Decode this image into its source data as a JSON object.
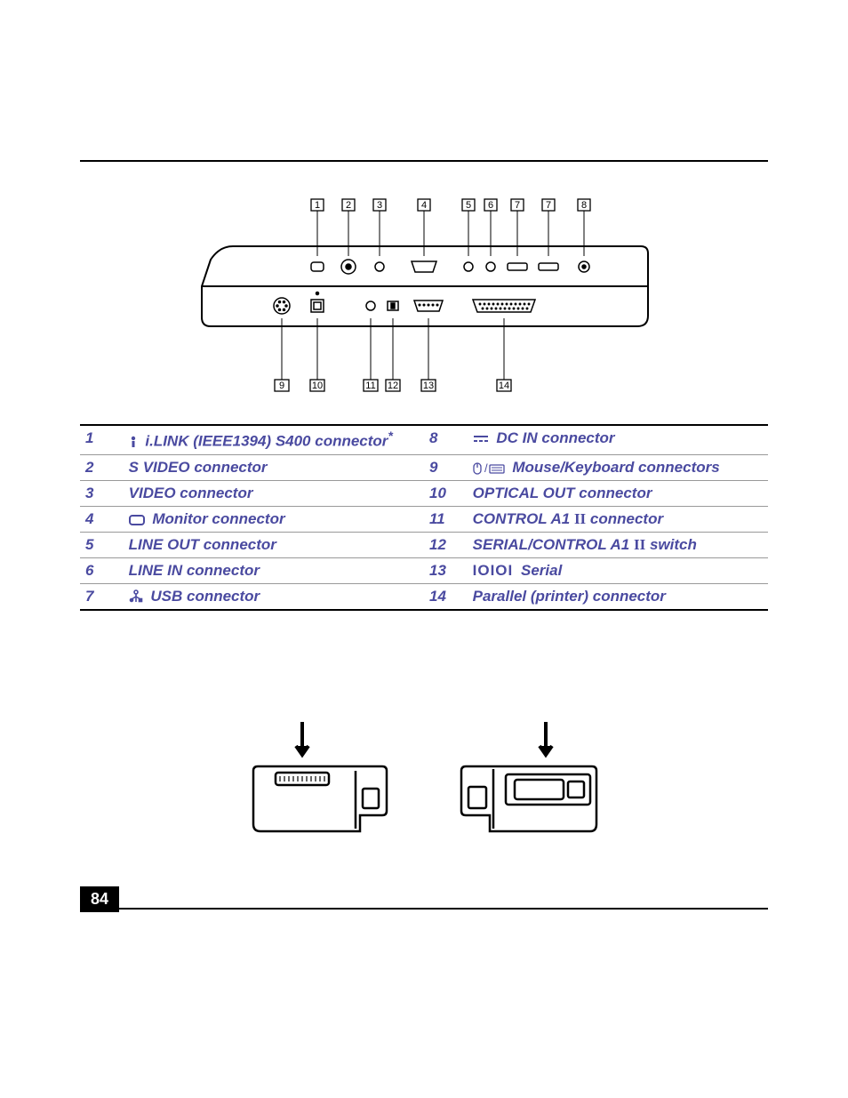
{
  "page_number": "84",
  "colors": {
    "accent": "#4a4aa0",
    "border": "#999999",
    "strong_border": "#000000"
  },
  "legend": [
    {
      "n": "1",
      "label": "i.LINK (IEEE1394) S400 connector",
      "sup": "*",
      "sym": "ilink",
      "n2": "8",
      "label2": "DC IN connector",
      "sym2": "dcin"
    },
    {
      "n": "2",
      "label": "S VIDEO connector",
      "n2": "9",
      "label2": "Mouse/Keyboard connectors",
      "sym2": "mousekbd"
    },
    {
      "n": "3",
      "label": "VIDEO connector",
      "n2": "10",
      "label2": "OPTICAL OUT connector"
    },
    {
      "n": "4",
      "label": "Monitor connector",
      "sym": "monitor",
      "n2": "11",
      "label2": "CONTROL A1",
      "suffix2": "connector",
      "roman2": "II"
    },
    {
      "n": "5",
      "label": "LINE OUT connector",
      "n2": "12",
      "label2": "SERIAL/CONTROL A1",
      "suffix2": "switch",
      "roman2": "II"
    },
    {
      "n": "6",
      "label": "LINE IN connector",
      "n2": "13",
      "label2": "Serial",
      "sym2": "serial"
    },
    {
      "n": "7",
      "label": "USB connector",
      "sym": "usb",
      "n2": "14",
      "label2": "Parallel (printer) connector"
    }
  ],
  "top_callouts": [
    "1",
    "2",
    "3",
    "4",
    "5",
    "6",
    "7",
    "7",
    "8"
  ],
  "bottom_callouts": [
    "9",
    "10",
    "11",
    "12",
    "13",
    "14"
  ],
  "diagram": {
    "panel_stroke": "#000",
    "panel_fill": "#fff"
  }
}
